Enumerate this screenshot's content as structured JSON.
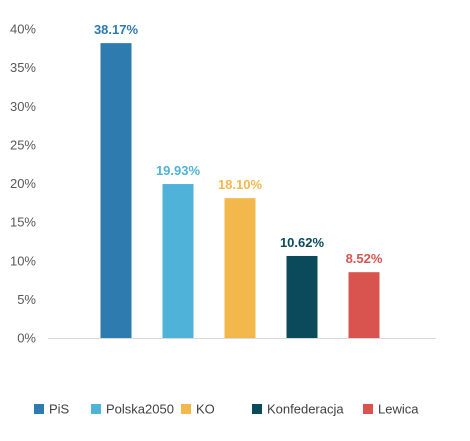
{
  "chart_data": {
    "type": "bar",
    "title": "",
    "xlabel": "",
    "ylabel": "",
    "categories": [
      "PiS",
      "Polska2050",
      "KO",
      "Konfederacja",
      "Lewica"
    ],
    "values": [
      38.17,
      19.93,
      18.1,
      10.62,
      8.52
    ],
    "data_labels": [
      "38.17%",
      "19.93%",
      "18.10%",
      "10.62%",
      "8.52%"
    ],
    "colors": [
      "#2e7bb0",
      "#4fb3d9",
      "#f2b84b",
      "#0b4a5a",
      "#d9534f"
    ],
    "ylim": [
      0,
      40
    ],
    "yticks": [
      0,
      5,
      10,
      15,
      20,
      25,
      30,
      35,
      40
    ],
    "ytick_labels": [
      "0%",
      "5%",
      "10%",
      "15%",
      "20%",
      "25%",
      "30%",
      "35%",
      "40%"
    ],
    "grid": false,
    "legend_position": "bottom",
    "legend": [
      "PiS",
      "Polska2050",
      "KO",
      "Konfederacja",
      "Lewica"
    ]
  }
}
